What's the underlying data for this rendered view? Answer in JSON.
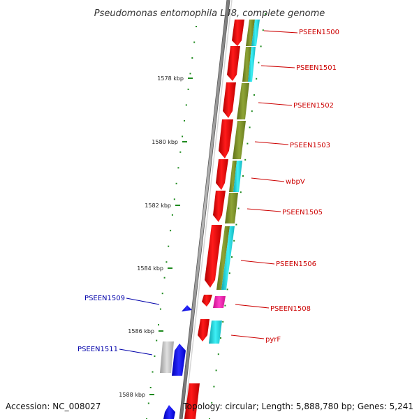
{
  "title": "Pseudomonas entomophila L48, complete genome",
  "footer": {
    "accession": "Accession: NC_008027",
    "summary": "Topology: circular; Length: 5,888,780 bp; Genes: 5,241"
  },
  "colors": {
    "backbone": "#8c8c8c",
    "tick": "#1e8a1e",
    "forward_label": "#cc0000",
    "reverse_label": "#0000aa",
    "cds_forward": "#ff0000",
    "cds_forward_dark": "#c80000",
    "cog_olive": "#7a8f28",
    "cog_cyan": "#19d6e0",
    "reverse_blue": "#0000ff",
    "hypothetical_gray": "#b4b4b4",
    "magenta": "#ff1ab4"
  },
  "ticks": [
    {
      "label": "1578 kbp"
    },
    {
      "label": "1580 kbp"
    },
    {
      "label": "1582 kbp"
    },
    {
      "label": "1584 kbp"
    },
    {
      "label": "1586 kbp"
    },
    {
      "label": "1588 kbp"
    }
  ],
  "genes": [
    {
      "name": "PSEEN1500",
      "strand": "forward"
    },
    {
      "name": "PSEEN1501",
      "strand": "forward"
    },
    {
      "name": "PSEEN1502",
      "strand": "forward"
    },
    {
      "name": "PSEEN1503",
      "strand": "forward"
    },
    {
      "name": "wbpV",
      "strand": "forward"
    },
    {
      "name": "PSEEN1505",
      "strand": "forward"
    },
    {
      "name": "PSEEN1506",
      "strand": "forward"
    },
    {
      "name": "PSEEN1508",
      "strand": "forward"
    },
    {
      "name": "pyrF",
      "strand": "forward"
    },
    {
      "name": "PSEEN1509",
      "strand": "reverse"
    },
    {
      "name": "PSEEN1511",
      "strand": "reverse"
    }
  ]
}
